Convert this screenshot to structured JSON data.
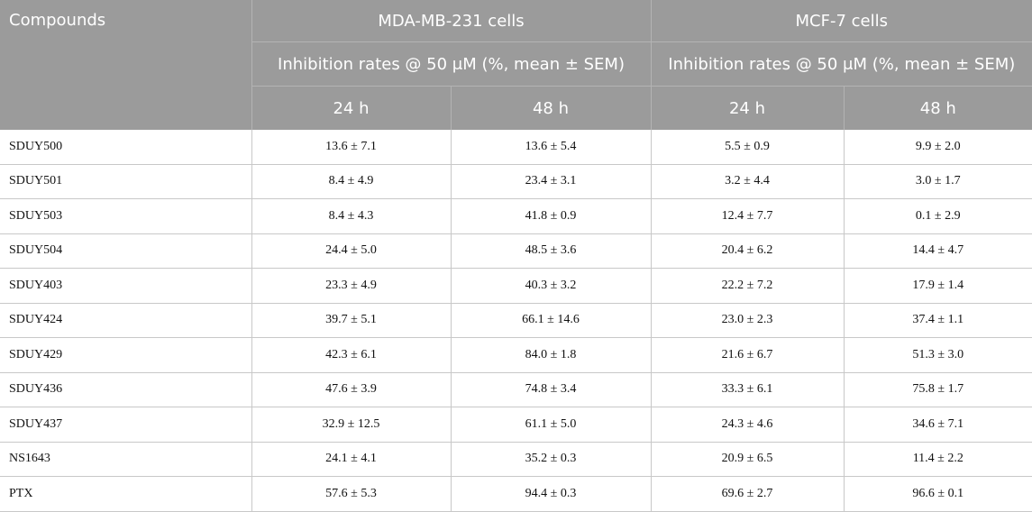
{
  "header": {
    "compounds_label": "Compounds",
    "groups": [
      "MDA-MB-231 cells",
      "MCF-7 cells"
    ],
    "metric_label": "Inhibition rates @ 50 μM (%, mean ± SEM)",
    "timepoints": [
      "24 h",
      "48 h",
      "24 h",
      "48 h"
    ]
  },
  "rows": [
    {
      "name": "SDUY500",
      "values": [
        "13.6 ± 7.1",
        "13.6 ± 5.4",
        "5.5 ± 0.9",
        "9.9 ± 2.0"
      ]
    },
    {
      "name": "SDUY501",
      "values": [
        "8.4 ± 4.9",
        "23.4 ± 3.1",
        "3.2 ± 4.4",
        "3.0 ± 1.7"
      ]
    },
    {
      "name": "SDUY503",
      "values": [
        "8.4 ± 4.3",
        "41.8 ± 0.9",
        "12.4 ± 7.7",
        "0.1 ± 2.9"
      ]
    },
    {
      "name": "SDUY504",
      "values": [
        "24.4 ± 5.0",
        "48.5 ± 3.6",
        "20.4 ± 6.2",
        "14.4 ± 4.7"
      ]
    },
    {
      "name": "SDUY403",
      "values": [
        "23.3 ± 4.9",
        "40.3 ± 3.2",
        "22.2 ± 7.2",
        "17.9 ± 1.4"
      ]
    },
    {
      "name": "SDUY424",
      "values": [
        "39.7 ± 5.1",
        "66.1 ± 14.6",
        "23.0 ± 2.3",
        "37.4 ± 1.1"
      ]
    },
    {
      "name": "SDUY429",
      "values": [
        "42.3 ± 6.1",
        "84.0 ± 1.8",
        "21.6 ± 6.7",
        "51.3 ± 3.0"
      ]
    },
    {
      "name": "SDUY436",
      "values": [
        "47.6 ± 3.9",
        "74.8 ± 3.4",
        "33.3 ± 6.1",
        "75.8 ± 1.7"
      ]
    },
    {
      "name": "SDUY437",
      "values": [
        "32.9 ± 12.5",
        "61.1 ± 5.0",
        "24.3 ± 4.6",
        "34.6 ± 7.1"
      ]
    },
    {
      "name": "NS1643",
      "values": [
        "24.1 ± 4.1",
        "35.2 ± 0.3",
        "20.9 ± 6.5",
        "11.4 ± 2.2"
      ]
    },
    {
      "name": "PTX",
      "values": [
        "57.6 ± 5.3",
        "94.4 ± 0.3",
        "69.6 ± 2.7",
        "96.6 ± 0.1"
      ]
    }
  ]
}
